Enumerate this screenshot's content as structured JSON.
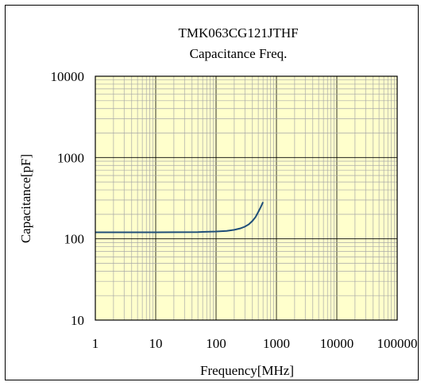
{
  "chart_data": {
    "type": "line",
    "title": "TMK063CG121JTHF",
    "subtitle": "Capacitance Freq.",
    "xlabel": "Frequency[MHz]",
    "ylabel": "Capacitance[pF]",
    "x_scale": "log",
    "y_scale": "log",
    "xlim": [
      1,
      100000
    ],
    "ylim": [
      10,
      10000
    ],
    "x_ticks": [
      "1",
      "10",
      "100",
      "1000",
      "10000",
      "100000"
    ],
    "y_ticks": [
      "10",
      "100",
      "1000",
      "10000"
    ],
    "grid": true,
    "plot_background": "#ffffcc",
    "grid_color": "#a8a8a8",
    "series": [
      {
        "color": "#1f4e79",
        "x": [
          1,
          2,
          5,
          10,
          20,
          50,
          100,
          150,
          200,
          250,
          300,
          350,
          400,
          450,
          500,
          550,
          600
        ],
        "y": [
          120,
          120,
          120,
          120,
          120.5,
          121,
          123,
          125,
          129,
          134,
          141,
          151,
          166,
          185,
          214,
          246,
          283
        ]
      }
    ]
  }
}
